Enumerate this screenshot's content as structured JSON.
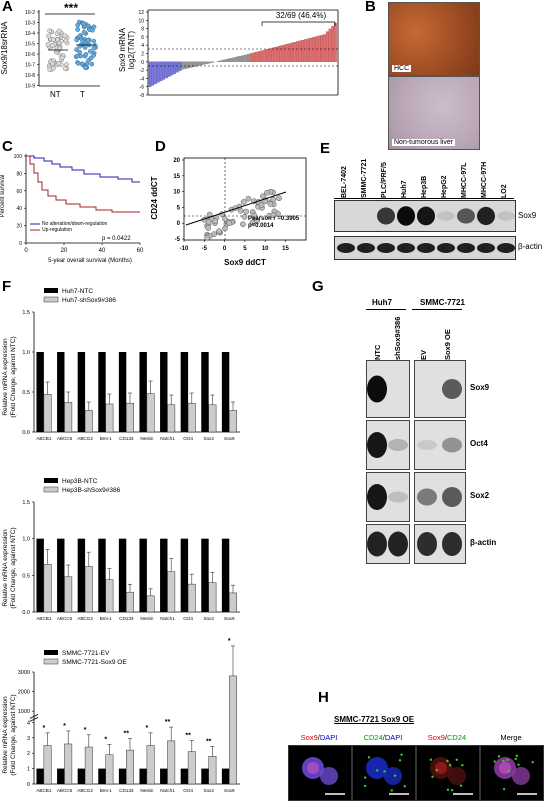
{
  "panels": {
    "A": {
      "label": "A",
      "scatter": {
        "ylabel": "Sox9/18srRNA",
        "yticks": [
          "10-2",
          "10-3",
          "10-4",
          "10-5",
          "10-6",
          "10-7",
          "10-8",
          "10-9"
        ],
        "groups": [
          "NT",
          "T"
        ],
        "significance": "***"
      },
      "waterfall": {
        "ylabel_line1": "Sox9 mRNA",
        "ylabel_line2": "log2(T/NT)",
        "yticks": [
          "12",
          "10",
          "8",
          "6",
          "4",
          "2",
          "0",
          "-2",
          "-4",
          "-6",
          "-8"
        ],
        "bracket_label": "32/69 (46.4%)"
      }
    },
    "B": {
      "label": "B",
      "images": [
        {
          "caption": "HCC",
          "color": "#9b4a22"
        },
        {
          "caption": "Non-tumorous liver",
          "color": "#b9a7b8"
        }
      ]
    },
    "C": {
      "label": "C",
      "ylabel": "Percent survival",
      "xlabel": "5-year overall survival (Months)",
      "yticks": [
        "100",
        "80",
        "60",
        "40",
        "20",
        "0"
      ],
      "xticks": [
        "0",
        "20",
        "40",
        "60"
      ],
      "legend": [
        {
          "name": "No alteration/down-regulation",
          "color": "#2222aa"
        },
        {
          "name": "Up-regulation",
          "color": "#aa2222"
        }
      ],
      "pvalue": "p = 0.0422"
    },
    "D": {
      "label": "D",
      "ylabel": "CD24 ddCT",
      "xlabel": "Sox9 ddCT",
      "yticks": [
        "20",
        "15",
        "10",
        "5",
        "0",
        "-5"
      ],
      "xticks": [
        "-10",
        "-5",
        "0",
        "5",
        "10",
        "15"
      ],
      "stat_line1": "Pearson r =0.3905",
      "stat_line2": "p=0.0014"
    },
    "E": {
      "label": "E",
      "cell_lines": [
        "BEL-7402",
        "SMMC-7721",
        "PLC/PRF/5",
        "Huh7",
        "Hep3B",
        "HepG2",
        "MHCC-97L",
        "MHCC-97H",
        "LO2"
      ],
      "bands": [
        "Sox9",
        "β-actin"
      ]
    },
    "F": {
      "label": "F",
      "ylabel_line1": "Relative mRNA expression",
      "ylabel_line2": "(Fold Change, against NTC)",
      "yticks": [
        "1.5",
        "1.0",
        "0.5",
        "0.0"
      ],
      "sub": [
        {
          "legend": [
            "Huh7-NTC",
            "Huh7-shSox9#386"
          ],
          "genes": [
            "ABCB1",
            "ABCC6",
            "ABCG2",
            "Bmi-1",
            "CD133",
            "Nestin",
            "Notch1",
            "Oct4",
            "Sox2",
            "Sox9"
          ],
          "stars": [
            "***",
            "*",
            "**",
            "***",
            "***",
            "**",
            "***",
            "***",
            "**",
            "***"
          ]
        },
        {
          "legend": [
            "Hep3B-NTC",
            "Hep3B-shSox9#386"
          ],
          "genes": [
            "ABCB1",
            "ABCC6",
            "ABCG2",
            "Bmi-1",
            "CD133",
            "Nestin",
            "Notch1",
            "Oct4",
            "Sox2",
            "Sox9"
          ],
          "stars": [
            "*",
            "**",
            "*",
            "**",
            "**",
            "***",
            "*",
            "*",
            "**",
            "***"
          ]
        },
        {
          "legend": [
            "SMMC-7721-EV",
            "SMMC-7721-Sox9 OE"
          ],
          "genes": [
            "ABCB1",
            "ABCC6",
            "ABCG2",
            "Bmi-1",
            "CD133",
            "Nestin",
            "Notch1",
            "Oct4",
            "Sox2",
            "Sox9"
          ],
          "stars": [
            "*",
            "*",
            "*",
            "*",
            "**",
            "*",
            "**",
            "**",
            "**",
            "*"
          ],
          "yticks": [
            "3000",
            "2000",
            "1000",
            "4",
            "3",
            "2",
            "1",
            "0"
          ]
        }
      ]
    },
    "G": {
      "label": "G",
      "groups": [
        "Huh7",
        "SMMC-7721"
      ],
      "lanes": [
        "NTC",
        "shSox9#386",
        "EV",
        "Sox9 OE"
      ],
      "bands": [
        "Sox9",
        "Oct4",
        "Sox2",
        "β-actin"
      ]
    },
    "H": {
      "label": "H",
      "title": "SMMC-7721 Sox9 OE",
      "columns": [
        {
          "a": "Sox9",
          "sep": "/",
          "b": "DAPI",
          "ca": "#dd0000",
          "cb": "#0000cc"
        },
        {
          "a": "CD24",
          "sep": "/",
          "b": "DAPI",
          "ca": "#009900",
          "cb": "#0000cc"
        },
        {
          "a": "Sox9",
          "sep": "/",
          "b": "CD24",
          "ca": "#dd0000",
          "cb": "#009900"
        },
        {
          "a": "Merge",
          "sep": "",
          "b": "",
          "ca": "#000000",
          "cb": "#000000"
        }
      ]
    }
  },
  "chart_data": [
    {
      "type": "bar",
      "panel": "F-top",
      "categories": [
        "ABCB1",
        "ABCC6",
        "ABCG2",
        "Bmi-1",
        "CD133",
        "Nestin",
        "Notch1",
        "Oct4",
        "Sox2",
        "Sox9"
      ],
      "series": [
        {
          "name": "Huh7-NTC",
          "values": [
            1,
            1,
            1,
            1,
            1,
            1,
            1,
            1,
            1,
            1
          ]
        },
        {
          "name": "Huh7-shSox9#386",
          "values": [
            0.47,
            0.37,
            0.27,
            0.35,
            0.36,
            0.48,
            0.34,
            0.36,
            0.34,
            0.27
          ]
        }
      ],
      "ylim": [
        0,
        1.5
      ]
    },
    {
      "type": "bar",
      "panel": "F-middle",
      "categories": [
        "ABCB1",
        "ABCC6",
        "ABCG2",
        "Bmi-1",
        "CD133",
        "Nestin",
        "Notch1",
        "Oct4",
        "Sox2",
        "Sox9"
      ],
      "series": [
        {
          "name": "Hep3B-NTC",
          "values": [
            1,
            1,
            1,
            1,
            1,
            1,
            1,
            1,
            1,
            1
          ]
        },
        {
          "name": "Hep3B-shSox9#386",
          "values": [
            0.65,
            0.48,
            0.62,
            0.44,
            0.27,
            0.22,
            0.55,
            0.38,
            0.4,
            0.26
          ]
        }
      ],
      "ylim": [
        0,
        1.5
      ]
    },
    {
      "type": "bar",
      "panel": "F-bottom",
      "categories": [
        "ABCB1",
        "ABCC6",
        "ABCG2",
        "Bmi-1",
        "CD133",
        "Nestin",
        "Notch1",
        "Oct4",
        "Sox2",
        "Sox9"
      ],
      "series": [
        {
          "name": "SMMC-7721-EV",
          "values": [
            1,
            1,
            1,
            1,
            1,
            1,
            1,
            1,
            1,
            1
          ]
        },
        {
          "name": "SMMC-7721-Sox9 OE",
          "values": [
            2.5,
            2.6,
            2.4,
            1.9,
            2.2,
            2.5,
            2.8,
            2.1,
            1.8,
            2800
          ]
        }
      ]
    }
  ]
}
